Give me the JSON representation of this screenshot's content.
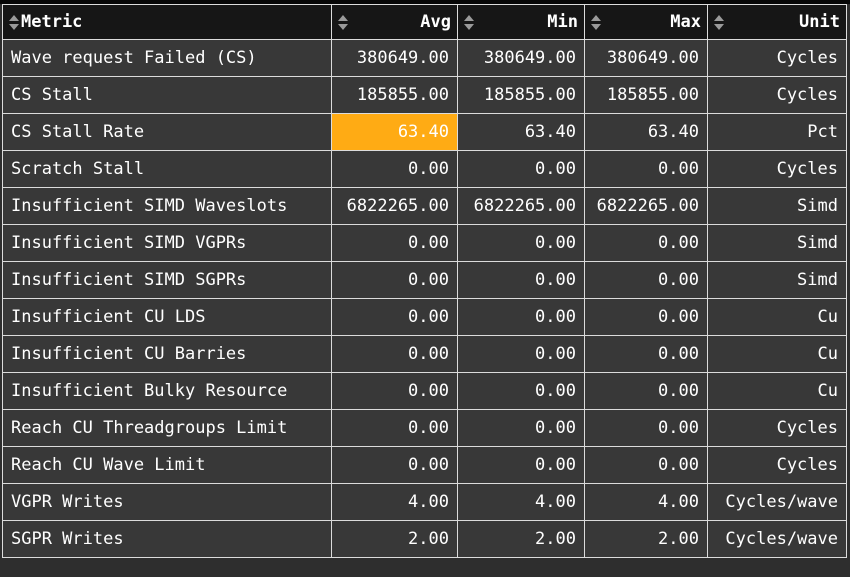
{
  "colors": {
    "page_background": "#2e2e2e",
    "top_strip": "#060606",
    "header_background": "#161616",
    "row_background": "#383838",
    "border": "#dcdcdc",
    "text": "#ffffff",
    "sort_icon": "#9a9a9a",
    "highlight": "#ffab14"
  },
  "icons": {
    "sort": "sort-up-down-arrows-icon"
  },
  "table": {
    "columns": [
      {
        "key": "metric",
        "label": "Metric",
        "align": "left"
      },
      {
        "key": "avg",
        "label": "Avg",
        "align": "right"
      },
      {
        "key": "min",
        "label": "Min",
        "align": "right"
      },
      {
        "key": "max",
        "label": "Max",
        "align": "right"
      },
      {
        "key": "unit",
        "label": "Unit",
        "align": "right"
      }
    ],
    "highlighted_cell": {
      "row_index": 2,
      "column": "avg",
      "color": "#ffab14"
    },
    "rows": [
      {
        "metric": "Wave request Failed (CS)",
        "avg": "380649.00",
        "min": "380649.00",
        "max": "380649.00",
        "unit": "Cycles"
      },
      {
        "metric": "CS Stall",
        "avg": "185855.00",
        "min": "185855.00",
        "max": "185855.00",
        "unit": "Cycles"
      },
      {
        "metric": "CS Stall Rate",
        "avg": "63.40",
        "min": "63.40",
        "max": "63.40",
        "unit": "Pct"
      },
      {
        "metric": "Scratch Stall",
        "avg": "0.00",
        "min": "0.00",
        "max": "0.00",
        "unit": "Cycles"
      },
      {
        "metric": "Insufficient SIMD Waveslots",
        "avg": "6822265.00",
        "min": "6822265.00",
        "max": "6822265.00",
        "unit": "Simd"
      },
      {
        "metric": "Insufficient SIMD VGPRs",
        "avg": "0.00",
        "min": "0.00",
        "max": "0.00",
        "unit": "Simd"
      },
      {
        "metric": "Insufficient SIMD SGPRs",
        "avg": "0.00",
        "min": "0.00",
        "max": "0.00",
        "unit": "Simd"
      },
      {
        "metric": "Insufficient CU LDS",
        "avg": "0.00",
        "min": "0.00",
        "max": "0.00",
        "unit": "Cu"
      },
      {
        "metric": "Insufficient CU Barries",
        "avg": "0.00",
        "min": "0.00",
        "max": "0.00",
        "unit": "Cu"
      },
      {
        "metric": "Insufficient Bulky Resource",
        "avg": "0.00",
        "min": "0.00",
        "max": "0.00",
        "unit": "Cu"
      },
      {
        "metric": "Reach CU Threadgroups Limit",
        "avg": "0.00",
        "min": "0.00",
        "max": "0.00",
        "unit": "Cycles"
      },
      {
        "metric": "Reach CU Wave Limit",
        "avg": "0.00",
        "min": "0.00",
        "max": "0.00",
        "unit": "Cycles"
      },
      {
        "metric": "VGPR Writes",
        "avg": "4.00",
        "min": "4.00",
        "max": "4.00",
        "unit": "Cycles/wave"
      },
      {
        "metric": "SGPR Writes",
        "avg": "2.00",
        "min": "2.00",
        "max": "2.00",
        "unit": "Cycles/wave"
      }
    ]
  }
}
